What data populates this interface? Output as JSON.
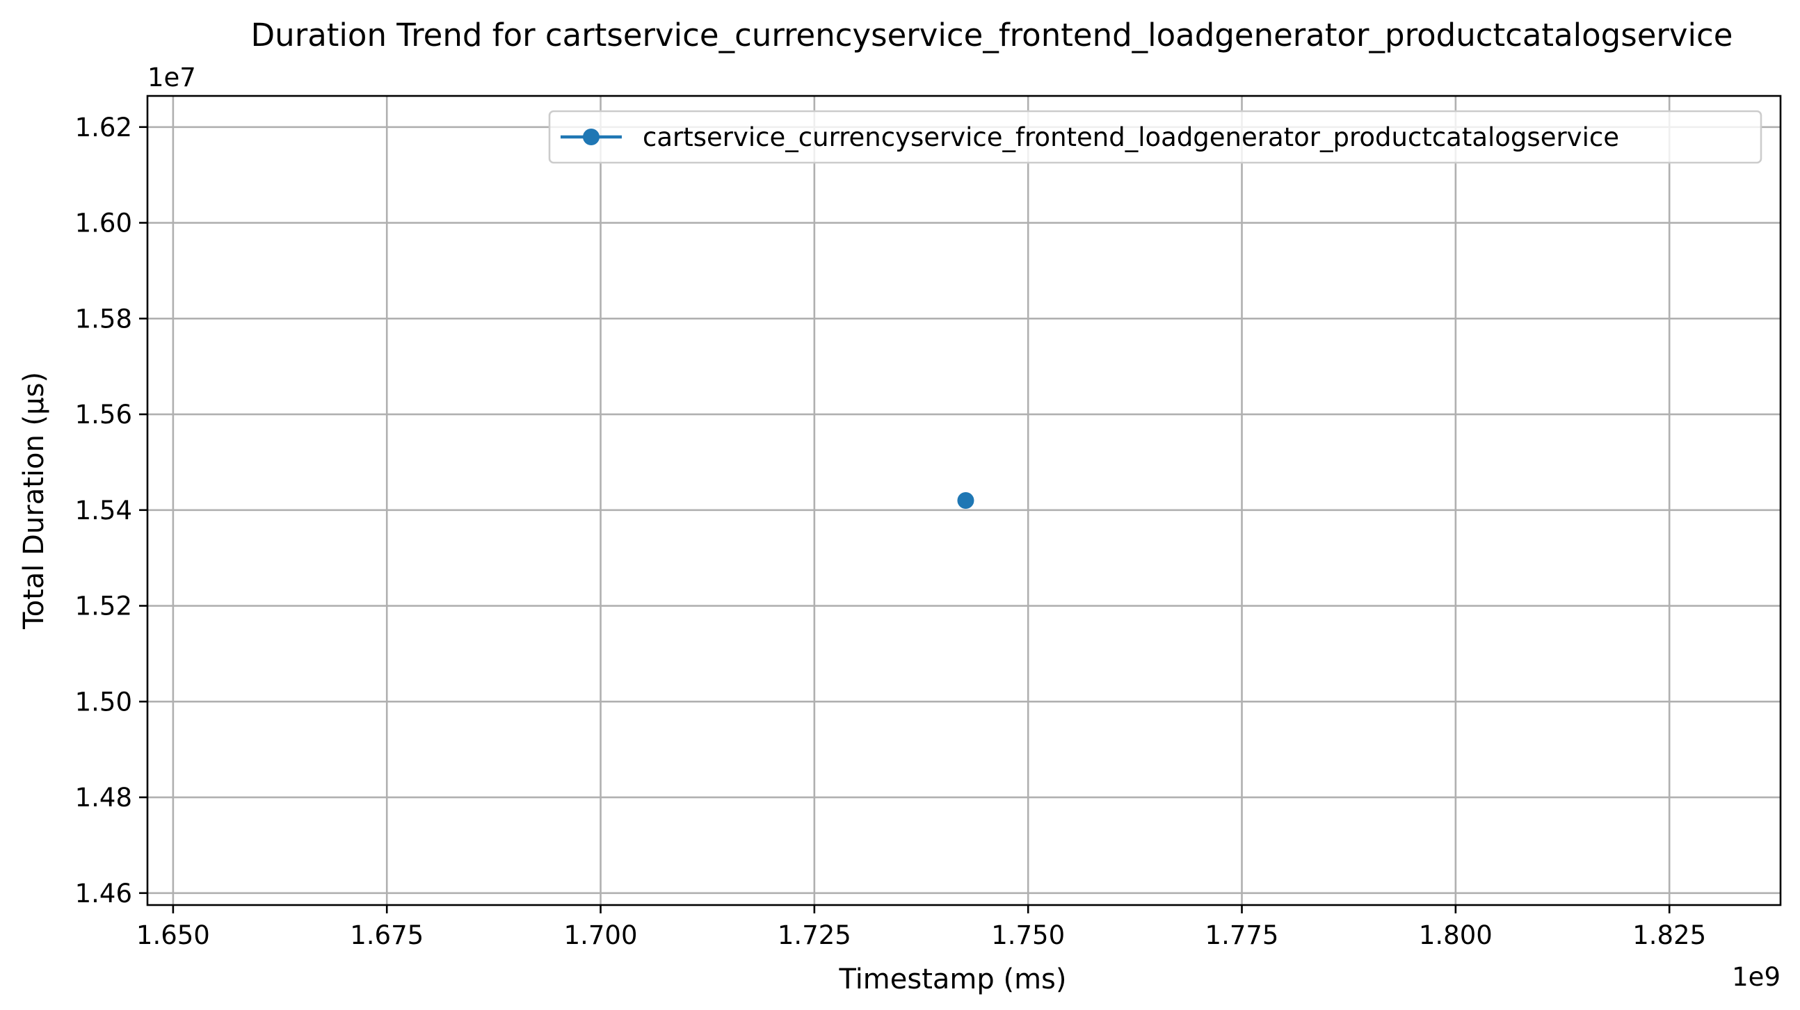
{
  "chart_data": {
    "type": "line",
    "title": "Duration Trend for cartservice_currencyservice_frontend_loadgenerator_productcatalogservice",
    "xlabel": "Timestamp (ms)",
    "ylabel": "Total Duration (µs)",
    "x_offset_label": "1e9",
    "y_offset_label": "1e7",
    "xlim": [
      1.647,
      1.838
    ],
    "ylim": [
      1.4575,
      1.6265
    ],
    "x_ticks": [
      1.65,
      1.675,
      1.7,
      1.725,
      1.75,
      1.775,
      1.8,
      1.825
    ],
    "x_tick_labels": [
      "1.650",
      "1.675",
      "1.700",
      "1.725",
      "1.750",
      "1.775",
      "1.800",
      "1.825"
    ],
    "y_ticks": [
      1.46,
      1.48,
      1.5,
      1.52,
      1.54,
      1.56,
      1.58,
      1.6,
      1.62
    ],
    "y_tick_labels": [
      "1.46",
      "1.48",
      "1.50",
      "1.52",
      "1.54",
      "1.56",
      "1.58",
      "1.60",
      "1.62"
    ],
    "grid": true,
    "legend_position": "top-right",
    "series": [
      {
        "name": "cartservice_currencyservice_frontend_loadgenerator_productcatalogservice",
        "color": "#1f77b4",
        "marker": "circle",
        "x": [
          1.7427
        ],
        "y": [
          1.542
        ]
      }
    ]
  }
}
